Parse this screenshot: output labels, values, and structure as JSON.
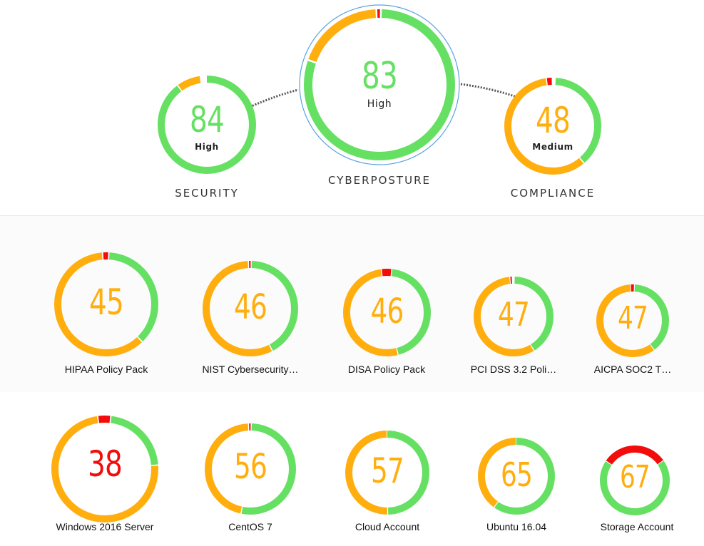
{
  "colors": {
    "green": "#66e063",
    "orange": "#ffae0d",
    "red": "#f20c0c"
  },
  "top": {
    "security": {
      "score": "84",
      "rating": "High",
      "label": "SECURITY",
      "segments": {
        "green": 0.9,
        "orange": 0.08,
        "red": 0.0
      }
    },
    "cyberposture": {
      "score": "83",
      "rating": "High",
      "label": "CYBERPOSTURE",
      "segments": {
        "green": 0.8,
        "orange": 0.19,
        "red": 0.01
      }
    },
    "compliance": {
      "score": "48",
      "rating": "Medium",
      "label": "COMPLIANCE",
      "segments": {
        "green": 0.38,
        "orange": 0.59,
        "red": 0.02
      }
    }
  },
  "policies": [
    {
      "score": "45",
      "label": "HIPAA Policy Pack",
      "segments": {
        "green": 0.37,
        "orange": 0.61,
        "red": 0.02
      }
    },
    {
      "score": "46",
      "label": "NIST Cybersecurity…",
      "segments": {
        "green": 0.42,
        "orange": 0.57,
        "red": 0.01
      }
    },
    {
      "score": "46",
      "label": "DISA Policy Pack",
      "segments": {
        "green": 0.44,
        "orange": 0.52,
        "red": 0.04
      }
    },
    {
      "score": "47",
      "label": "PCI DSS 3.2 Poli…",
      "segments": {
        "green": 0.41,
        "orange": 0.57,
        "red": 0.01
      }
    },
    {
      "score": "47",
      "label": "AICPA SOC2 T…",
      "segments": {
        "green": 0.39,
        "orange": 0.59,
        "red": 0.02
      }
    }
  ],
  "assets": [
    {
      "score": "38",
      "label": "Windows 2016 Server",
      "score_color": "red",
      "segments": {
        "green": 0.22,
        "orange": 0.74,
        "red": 0.04
      }
    },
    {
      "score": "56",
      "label": "CentOS 7",
      "score_color": "orange",
      "segments": {
        "green": 0.53,
        "orange": 0.46,
        "red": 0.01
      }
    },
    {
      "score": "57",
      "label": "Cloud Account",
      "score_color": "orange",
      "segments": {
        "green": 0.5,
        "orange": 0.5,
        "red": 0.0
      }
    },
    {
      "score": "65",
      "label": "Ubuntu 16.04",
      "score_color": "orange",
      "segments": {
        "green": 0.6,
        "orange": 0.4,
        "red": 0.0
      }
    },
    {
      "score": "67",
      "label": "Storage Account",
      "score_color": "orange",
      "segments": {
        "green": 0.69,
        "orange": 0.0,
        "red": 0.31
      }
    }
  ]
}
